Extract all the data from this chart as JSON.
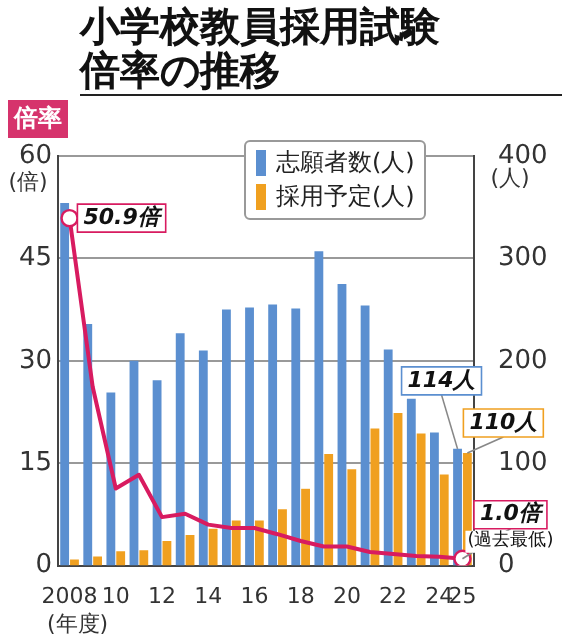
{
  "chart_data": {
    "type": "bar",
    "title": "小学校教員採用試験倍率の推移",
    "ylabel": "倍率",
    "xlabel": "(年度)",
    "y2label": "(人)",
    "categories": [
      "2008",
      null,
      "10",
      null,
      "12",
      null,
      "14",
      null,
      "16",
      null,
      "18",
      null,
      "20",
      null,
      "22",
      null,
      "24",
      "25"
    ],
    "series": [
      {
        "name": "志願者数(人)",
        "color": "#5b8fd0",
        "axis": "y2",
        "values": [
          354,
          236,
          169,
          200,
          181,
          227,
          210,
          250,
          252,
          255,
          251,
          307,
          275,
          254,
          211,
          163,
          130,
          114
        ],
        "value_labels": [
          null,
          null,
          null,
          null,
          null,
          null,
          null,
          null,
          null,
          null,
          null,
          null,
          null,
          null,
          null,
          null,
          null,
          "114人"
        ]
      },
      {
        "name": "採用予定(人)",
        "color": "#f0a020",
        "axis": "y2",
        "values": [
          6,
          9,
          14,
          15,
          24,
          30,
          36,
          44,
          44,
          55,
          75,
          109,
          94,
          134,
          149,
          129,
          89,
          110
        ],
        "value_labels": [
          null,
          null,
          null,
          null,
          null,
          null,
          null,
          null,
          null,
          null,
          null,
          null,
          null,
          null,
          null,
          null,
          null,
          "110人"
        ]
      },
      {
        "type": "line",
        "color": "#d81b60",
        "axis": "y",
        "values": [
          50.9,
          26.2,
          11.3,
          13.3,
          7.1,
          7.6,
          6.0,
          5.5,
          5.5,
          4.6,
          3.6,
          2.8,
          2.8,
          2.0,
          1.7,
          1.4,
          1.3,
          1.0
        ],
        "value_labels": [
          "50.9倍",
          null,
          null,
          null,
          null,
          null,
          null,
          null,
          null,
          null,
          null,
          null,
          null,
          null,
          null,
          null,
          null,
          "1.0倍"
        ]
      }
    ],
    "annotations": [
      "(倍)",
      "(過去最低)"
    ],
    "ylim": [
      0,
      60
    ],
    "yticks": [
      0,
      15,
      30,
      45,
      60
    ],
    "y2lim": [
      0,
      400
    ],
    "y2ticks": [
      0,
      100,
      200,
      300,
      400
    ],
    "grid": "y",
    "legend": "top",
    "marker": "none",
    "line_style": "solid"
  }
}
